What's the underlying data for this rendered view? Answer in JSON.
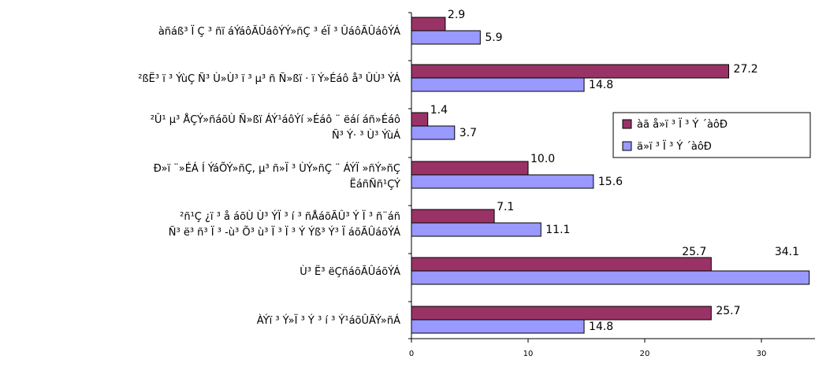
{
  "chart_data": {
    "type": "bar",
    "orientation": "horizontal",
    "categories": [
      [
        "àñáß³ Ï Ç ³ ñï  áÝáôÃÛáôÝÝ»ñÇ ³ éÏ ³ ÛáôÃÛáôÝÁ"
      ],
      [
        "²ßË³ ï ³ ÝùÇ Ñ³ Ù»Ù³ ï ³ µ³ ñ Ñ»ßï  · ï Ý»Éáô å³ ÛÙ³ ÝÁ"
      ],
      [
        "²Û¹ µ³ ÅÇÝ»ñáõÙ Ñ»ßï  ÁÝ¹áôÝí »Éáô ¨ ëáí áñ»Éáô",
        "Ñ³ Ý· ³ Ù³ ÝùÁ"
      ],
      [
        "Ð»ï ¨»ÉÁ Í ÝáÕÝ»ñÇ, µ³ ñ»Ï ³ ÙÝ»ñÇ ¨ ÁÝÏ »ñÝ»ñÇ",
        "ËáñÑñ¹ÇÝ"
      ],
      [
        "²ñ¹Ç ¿ï ³ å áõÙ Ù³ ÝÏ ³ í ³ ñÅáõÃÛ³ Ý Ï ³ ñ¨áñ",
        "Ñ³ ë³ ñ³ Ï ³ -ù³ Õ³ ù³ Ï ³ Ï ³ Ý Ýß³ Ý³ Ï áõÃÛáõÝÁ"
      ],
      [
        "Ù³ Ë³ ëÇñáõÃÛáõÝÁ"
      ],
      [
        "ÀÝï ³ Ý»Ï ³ Ý ³ í ³ Ý¹áõÛÃÝ»ñÁ"
      ]
    ],
    "series": [
      {
        "name": "àã å»ï ³ Ï ³ Ý ´àôÐ",
        "color": "#993366",
        "values": [
          2.9,
          27.2,
          1.4,
          10.0,
          7.1,
          25.7,
          25.7
        ]
      },
      {
        "name": "ä»ï ³ Ï ³ Ý ´àôÐ",
        "color": "#9999ff",
        "values": [
          5.9,
          14.8,
          3.7,
          15.6,
          11.1,
          34.1,
          14.8
        ]
      }
    ],
    "value_labels": [
      [
        "2.9",
        "27.2",
        "1.4",
        "10.0",
        "7.1",
        "25.7",
        "25.7"
      ],
      [
        "5.9",
        "14.8",
        "3.7",
        "15.6",
        "11.1",
        "34.1",
        "14.8"
      ]
    ],
    "xlim": [
      0,
      34.1
    ],
    "xticks": [
      0,
      10,
      20,
      30
    ],
    "xtick_labels": [
      "0",
      "10",
      "20",
      "30"
    ],
    "grid": false,
    "legend_position": "right"
  }
}
